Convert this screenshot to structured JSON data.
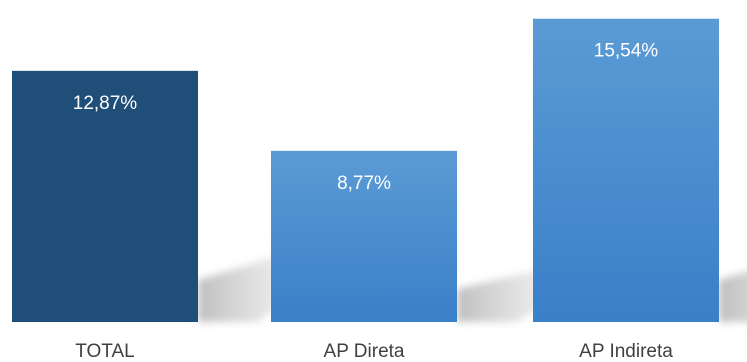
{
  "chart_data": {
    "type": "bar",
    "title": "",
    "xlabel": "",
    "ylabel": "",
    "categories": [
      "TOTAL",
      "AP Direta",
      "AP Indireta"
    ],
    "values": [
      12.87,
      8.77,
      15.54
    ],
    "value_labels": [
      "12,87%",
      "8,77%",
      "15,54%"
    ],
    "ylim": [
      0,
      16.5
    ],
    "grid": false,
    "legend": "none",
    "colors": {
      "total": "#1f4e79",
      "ap_top": "#5b9bd5",
      "ap_bottom": "#3a80c8",
      "label_text": "#ffffff",
      "category_text": "#404040"
    }
  }
}
